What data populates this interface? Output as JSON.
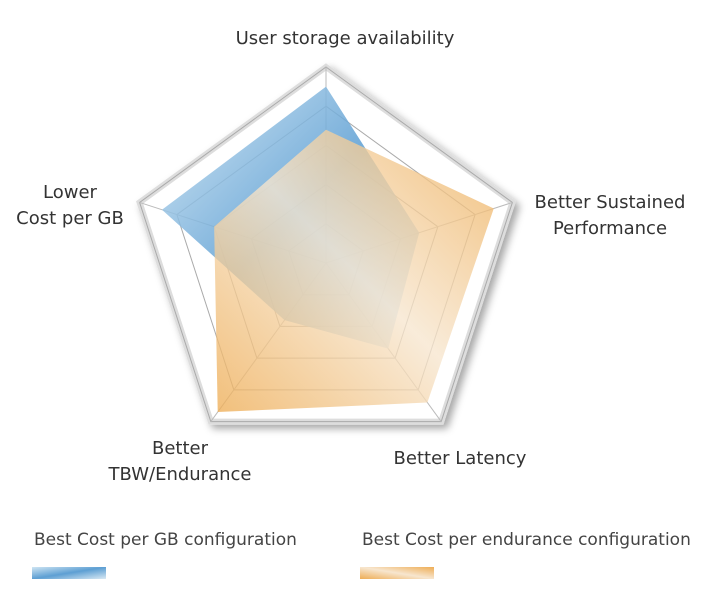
{
  "chart_data": {
    "type": "radar",
    "categories": [
      "User storage availability",
      "Better Sustained\nPerformance",
      "Better Latency",
      "Better\nTBW/Endurance",
      "Lower\nCost per GB"
    ],
    "series": [
      {
        "name": "Best Cost per GB configuration",
        "color": "#5d9fd3",
        "values": [
          4.5,
          2.5,
          2.7,
          1.8,
          4.4
        ]
      },
      {
        "name": "Best Cost per endurance configuration",
        "color": "#eead55",
        "values": [
          3.4,
          4.5,
          4.4,
          4.7,
          3.0
        ]
      }
    ],
    "ylim": [
      0,
      5
    ],
    "yticks": [
      1,
      2,
      3,
      4,
      5
    ],
    "grid": true
  }
}
